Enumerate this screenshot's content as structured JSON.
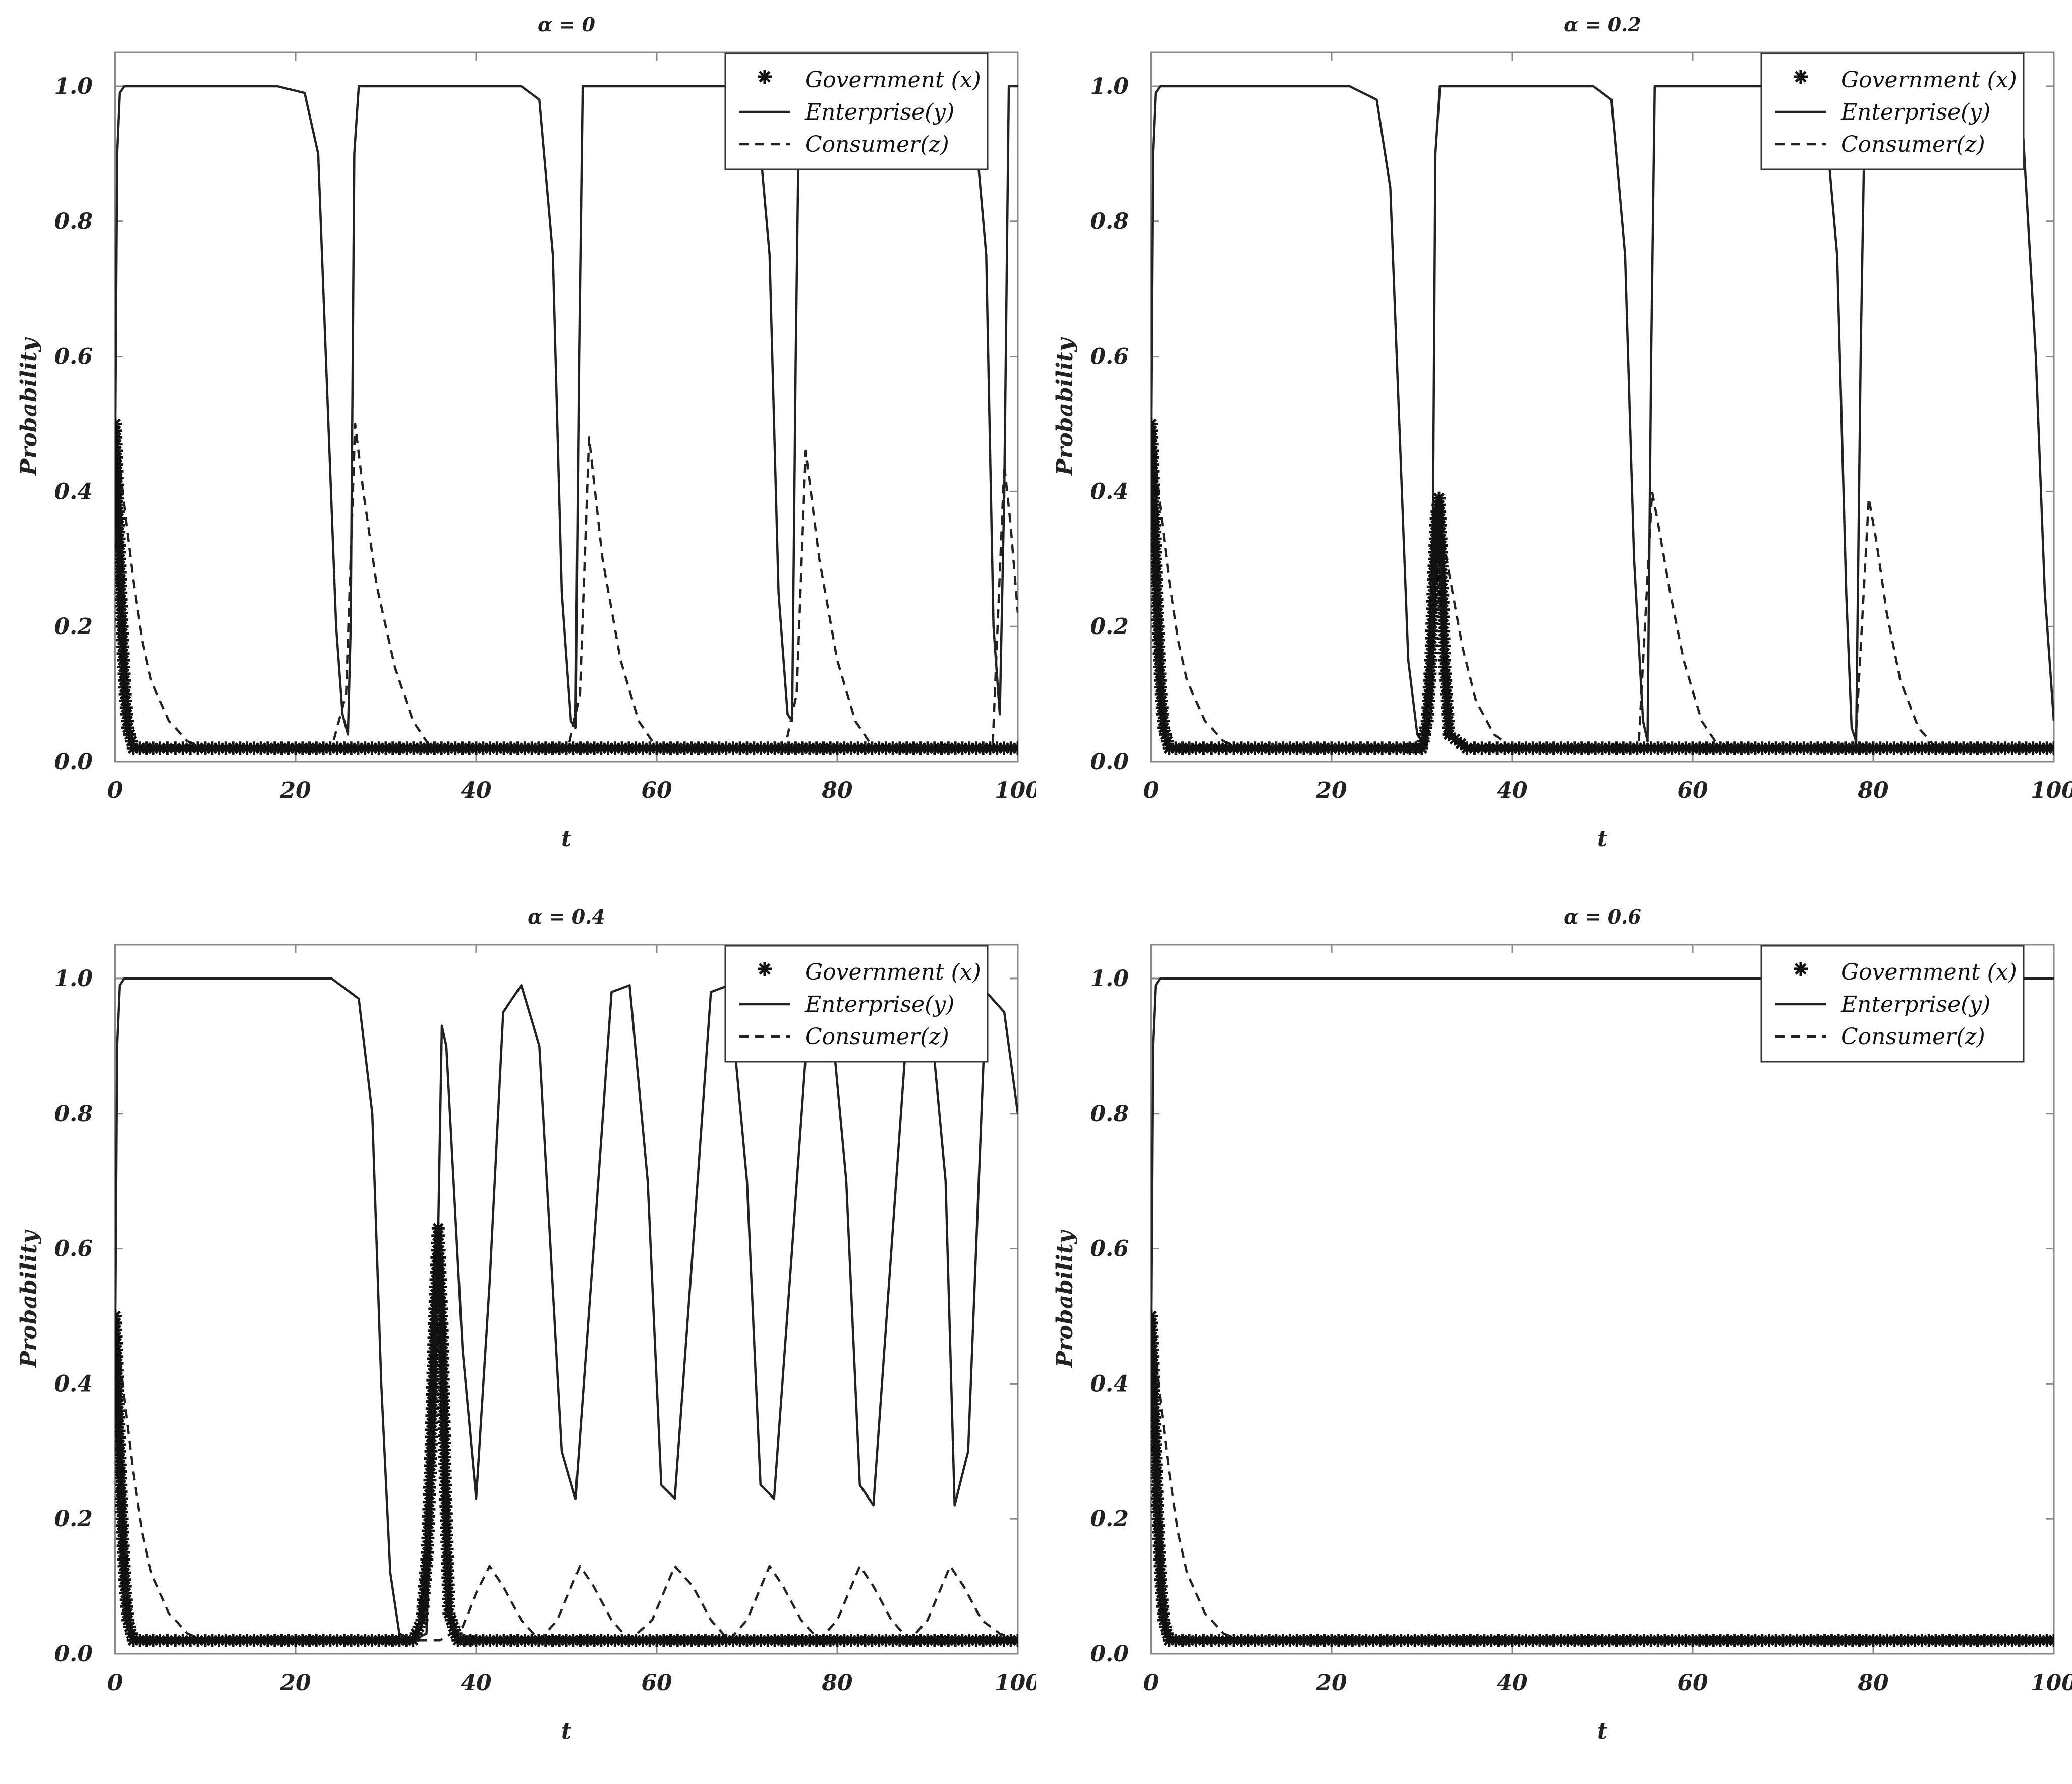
{
  "chart_data": [
    {
      "type": "line",
      "title": "α = 0",
      "xlabel": "t",
      "ylabel": "Probability",
      "xlim": [
        0,
        100
      ],
      "ylim": [
        0,
        1.05
      ],
      "xticks": [
        0,
        20,
        40,
        60,
        80,
        100
      ],
      "yticks": [
        0.0,
        0.2,
        0.4,
        0.6,
        0.8,
        1.0
      ],
      "x_tick_labels": [
        "0",
        "20",
        "40",
        "60",
        "80",
        "100"
      ],
      "y_tick_labels": [
        "0.0",
        "0.2",
        "0.4",
        "0.6",
        "0.8",
        "1.0"
      ],
      "legend_position": "top-right",
      "series": [
        {
          "name": "Government (x)",
          "style": "asterisk",
          "x": [
            0,
            0.15,
            0.3,
            0.5,
            0.7,
            0.9,
            1.1,
            1.4,
            2,
            5,
            10,
            20,
            30,
            40,
            50,
            60,
            70,
            80,
            90,
            100
          ],
          "values": [
            0.5,
            0.45,
            0.38,
            0.3,
            0.22,
            0.15,
            0.1,
            0.05,
            0.02,
            0.02,
            0.02,
            0.02,
            0.02,
            0.02,
            0.02,
            0.02,
            0.02,
            0.02,
            0.02,
            0.02
          ]
        },
        {
          "name": "Enterprise(y)",
          "style": "solid",
          "x": [
            0,
            0.2,
            0.5,
            1,
            18,
            21,
            22.5,
            23.5,
            24.5,
            25.2,
            25.8,
            26.1,
            26.5,
            27,
            45,
            47,
            48.5,
            49.5,
            50.5,
            51,
            51.4,
            51.8,
            69.5,
            71,
            72.5,
            73.5,
            74.5,
            75,
            75.4,
            75.8,
            93.5,
            95,
            96.5,
            97.3,
            98,
            98.5,
            99,
            100
          ],
          "values": [
            0.5,
            0.9,
            0.99,
            1.0,
            1.0,
            0.99,
            0.9,
            0.55,
            0.2,
            0.07,
            0.04,
            0.2,
            0.9,
            1.0,
            1.0,
            0.98,
            0.75,
            0.25,
            0.06,
            0.05,
            0.6,
            1.0,
            1.0,
            0.98,
            0.75,
            0.25,
            0.07,
            0.06,
            0.6,
            1.0,
            1.0,
            0.98,
            0.75,
            0.2,
            0.07,
            0.4,
            1.0,
            1.0
          ]
        },
        {
          "name": "Consumer(z)",
          "style": "dashed",
          "x": [
            0,
            1,
            2,
            3,
            4,
            6,
            8,
            10,
            24,
            25.6,
            26.6,
            27.5,
            29,
            31,
            33,
            35,
            50.2,
            51.5,
            52.5,
            54,
            56,
            58,
            60,
            74.2,
            75.5,
            76.5,
            78,
            80,
            82,
            84,
            97.2,
            98.5,
            99.2,
            100
          ],
          "values": [
            0.5,
            0.38,
            0.27,
            0.18,
            0.12,
            0.06,
            0.03,
            0.02,
            0.02,
            0.1,
            0.5,
            0.4,
            0.26,
            0.14,
            0.06,
            0.02,
            0.02,
            0.1,
            0.48,
            0.3,
            0.15,
            0.06,
            0.02,
            0.02,
            0.1,
            0.46,
            0.3,
            0.15,
            0.06,
            0.02,
            0.02,
            0.44,
            0.35,
            0.22
          ]
        }
      ]
    },
    {
      "type": "line",
      "title": "α = 0.2",
      "xlabel": "t",
      "ylabel": "Probability",
      "xlim": [
        0,
        100
      ],
      "ylim": [
        0,
        1.05
      ],
      "xticks": [
        0,
        20,
        40,
        60,
        80,
        100
      ],
      "yticks": [
        0.0,
        0.2,
        0.4,
        0.6,
        0.8,
        1.0
      ],
      "x_tick_labels": [
        "0",
        "20",
        "40",
        "60",
        "80",
        "100"
      ],
      "y_tick_labels": [
        "0.0",
        "0.2",
        "0.4",
        "0.6",
        "0.8",
        "1.0"
      ],
      "legend_position": "top-right",
      "series": [
        {
          "name": "Government (x)",
          "style": "asterisk",
          "x": [
            0,
            0.15,
            0.3,
            0.5,
            0.7,
            0.9,
            1.1,
            1.4,
            2,
            5,
            10,
            20,
            28,
            30,
            30.6,
            31,
            31.3,
            31.6,
            31.9,
            32.2,
            32.5,
            33,
            35,
            40,
            50,
            60,
            70,
            80,
            90,
            100
          ],
          "values": [
            0.5,
            0.45,
            0.38,
            0.3,
            0.22,
            0.15,
            0.1,
            0.05,
            0.02,
            0.02,
            0.02,
            0.02,
            0.02,
            0.02,
            0.06,
            0.15,
            0.27,
            0.36,
            0.39,
            0.3,
            0.15,
            0.04,
            0.02,
            0.02,
            0.02,
            0.02,
            0.02,
            0.02,
            0.02,
            0.02
          ]
        },
        {
          "name": "Enterprise(y)",
          "style": "solid",
          "x": [
            0,
            0.2,
            0.5,
            1,
            22,
            25,
            26.5,
            27.5,
            28.5,
            29.5,
            30.5,
            31.1,
            31.5,
            32,
            49,
            51,
            52.5,
            53.5,
            54.5,
            55,
            55.4,
            55.8,
            73,
            74.5,
            76,
            77,
            77.6,
            78.1,
            78.6,
            79.1,
            95,
            96.5,
            98,
            99,
            100
          ],
          "values": [
            0.5,
            0.9,
            0.99,
            1.0,
            1.0,
            0.98,
            0.85,
            0.5,
            0.15,
            0.04,
            0.02,
            0.1,
            0.9,
            1.0,
            1.0,
            0.98,
            0.75,
            0.3,
            0.06,
            0.03,
            0.6,
            1.0,
            1.0,
            0.98,
            0.75,
            0.25,
            0.05,
            0.03,
            0.6,
            1.0,
            1.0,
            0.95,
            0.6,
            0.25,
            0.06
          ]
        },
        {
          "name": "Consumer(z)",
          "style": "dashed",
          "x": [
            0,
            1,
            2,
            3,
            4,
            6,
            8,
            10,
            30,
            31,
            32,
            33,
            34.5,
            36,
            38,
            40,
            54,
            55.5,
            56.2,
            57.5,
            59,
            61,
            63,
            78,
            79.5,
            80.3,
            81.5,
            83,
            85,
            87
          ],
          "values": [
            0.5,
            0.38,
            0.27,
            0.18,
            0.12,
            0.06,
            0.03,
            0.02,
            0.02,
            0.2,
            0.36,
            0.28,
            0.17,
            0.09,
            0.04,
            0.02,
            0.02,
            0.4,
            0.35,
            0.25,
            0.15,
            0.06,
            0.02,
            0.02,
            0.39,
            0.33,
            0.22,
            0.12,
            0.05,
            0.02
          ]
        }
      ]
    },
    {
      "type": "line",
      "title": "α = 0.4",
      "xlabel": "t",
      "ylabel": "Probability",
      "xlim": [
        0,
        100
      ],
      "ylim": [
        0,
        1.05
      ],
      "xticks": [
        0,
        20,
        40,
        60,
        80,
        100
      ],
      "yticks": [
        0.0,
        0.2,
        0.4,
        0.6,
        0.8,
        1.0
      ],
      "x_tick_labels": [
        "0",
        "20",
        "40",
        "60",
        "80",
        "100"
      ],
      "y_tick_labels": [
        "0.0",
        "0.2",
        "0.4",
        "0.6",
        "0.8",
        "1.0"
      ],
      "legend_position": "top-right",
      "series": [
        {
          "name": "Government (x)",
          "style": "asterisk",
          "x": [
            0,
            0.15,
            0.3,
            0.5,
            0.7,
            0.9,
            1.1,
            1.4,
            2,
            5,
            10,
            20,
            30,
            33,
            34,
            34.6,
            35,
            35.4,
            35.8,
            36.2,
            36.6,
            37,
            38,
            40,
            50,
            60,
            70,
            80,
            90,
            100
          ],
          "values": [
            0.5,
            0.45,
            0.38,
            0.3,
            0.22,
            0.15,
            0.1,
            0.05,
            0.02,
            0.02,
            0.02,
            0.02,
            0.02,
            0.02,
            0.05,
            0.15,
            0.3,
            0.5,
            0.63,
            0.5,
            0.25,
            0.06,
            0.02,
            0.02,
            0.02,
            0.02,
            0.02,
            0.02,
            0.02,
            0.02
          ]
        },
        {
          "name": "Enterprise(y)",
          "style": "solid",
          "x": [
            0,
            0.2,
            0.5,
            1,
            24,
            27,
            28.5,
            29.5,
            30.5,
            31.5,
            33,
            34.5,
            35.5,
            36.2,
            36.7,
            38.5,
            40,
            41.5,
            43,
            45,
            47,
            49.5,
            51,
            53,
            55,
            57,
            59,
            60.5,
            62,
            64,
            66,
            68,
            70,
            71.5,
            73,
            75,
            77,
            79,
            81,
            82.5,
            84,
            86,
            88,
            90,
            92,
            93,
            94.5,
            96.5,
            98.5,
            100
          ],
          "values": [
            0.5,
            0.9,
            0.99,
            1.0,
            1.0,
            0.97,
            0.8,
            0.4,
            0.12,
            0.03,
            0.02,
            0.03,
            0.4,
            0.93,
            0.9,
            0.45,
            0.23,
            0.55,
            0.95,
            0.99,
            0.9,
            0.3,
            0.23,
            0.6,
            0.98,
            0.99,
            0.7,
            0.25,
            0.23,
            0.6,
            0.98,
            0.99,
            0.7,
            0.25,
            0.23,
            0.6,
            0.98,
            0.99,
            0.7,
            0.25,
            0.22,
            0.6,
            0.98,
            0.99,
            0.7,
            0.22,
            0.3,
            0.98,
            0.95,
            0.8
          ]
        },
        {
          "name": "Consumer(z)",
          "style": "dashed",
          "x": [
            0,
            1,
            2,
            3,
            4,
            6,
            8,
            10,
            36,
            38.5,
            40,
            41.5,
            43,
            45,
            47,
            49,
            51.5,
            53,
            55,
            57,
            59.5,
            62,
            64,
            66,
            68,
            70,
            72.5,
            74,
            76,
            78,
            80,
            82.5,
            84,
            86,
            88,
            90,
            92.5,
            94,
            96,
            98,
            100
          ],
          "values": [
            0.5,
            0.38,
            0.27,
            0.18,
            0.12,
            0.06,
            0.03,
            0.02,
            0.02,
            0.04,
            0.09,
            0.13,
            0.1,
            0.05,
            0.02,
            0.05,
            0.13,
            0.1,
            0.05,
            0.02,
            0.05,
            0.13,
            0.1,
            0.05,
            0.02,
            0.05,
            0.13,
            0.1,
            0.05,
            0.02,
            0.05,
            0.13,
            0.1,
            0.05,
            0.02,
            0.05,
            0.13,
            0.1,
            0.05,
            0.03,
            0.02
          ]
        }
      ]
    },
    {
      "type": "line",
      "title": "α = 0.6",
      "xlabel": "t",
      "ylabel": "Probability",
      "xlim": [
        0,
        100
      ],
      "ylim": [
        0,
        1.05
      ],
      "xticks": [
        0,
        20,
        40,
        60,
        80,
        100
      ],
      "yticks": [
        0.0,
        0.2,
        0.4,
        0.6,
        0.8,
        1.0
      ],
      "x_tick_labels": [
        "0",
        "20",
        "40",
        "60",
        "80",
        "100"
      ],
      "y_tick_labels": [
        "0.0",
        "0.2",
        "0.4",
        "0.6",
        "0.8",
        "1.0"
      ],
      "legend_position": "top-right",
      "series": [
        {
          "name": "Government (x)",
          "style": "asterisk",
          "x": [
            0,
            0.15,
            0.3,
            0.5,
            0.7,
            0.9,
            1.1,
            1.4,
            2,
            5,
            10,
            20,
            30,
            40,
            50,
            60,
            70,
            80,
            90,
            100
          ],
          "values": [
            0.5,
            0.45,
            0.38,
            0.3,
            0.22,
            0.15,
            0.1,
            0.05,
            0.02,
            0.02,
            0.02,
            0.02,
            0.02,
            0.02,
            0.02,
            0.02,
            0.02,
            0.02,
            0.02,
            0.02
          ]
        },
        {
          "name": "Enterprise(y)",
          "style": "solid",
          "x": [
            0,
            0.2,
            0.5,
            1,
            100
          ],
          "values": [
            0.5,
            0.9,
            0.99,
            1.0,
            1.0
          ]
        },
        {
          "name": "Consumer(z)",
          "style": "dashed",
          "x": [
            0,
            1,
            2,
            3,
            4,
            6,
            8,
            10
          ],
          "values": [
            0.5,
            0.38,
            0.27,
            0.18,
            0.12,
            0.06,
            0.03,
            0.02
          ]
        }
      ]
    }
  ]
}
